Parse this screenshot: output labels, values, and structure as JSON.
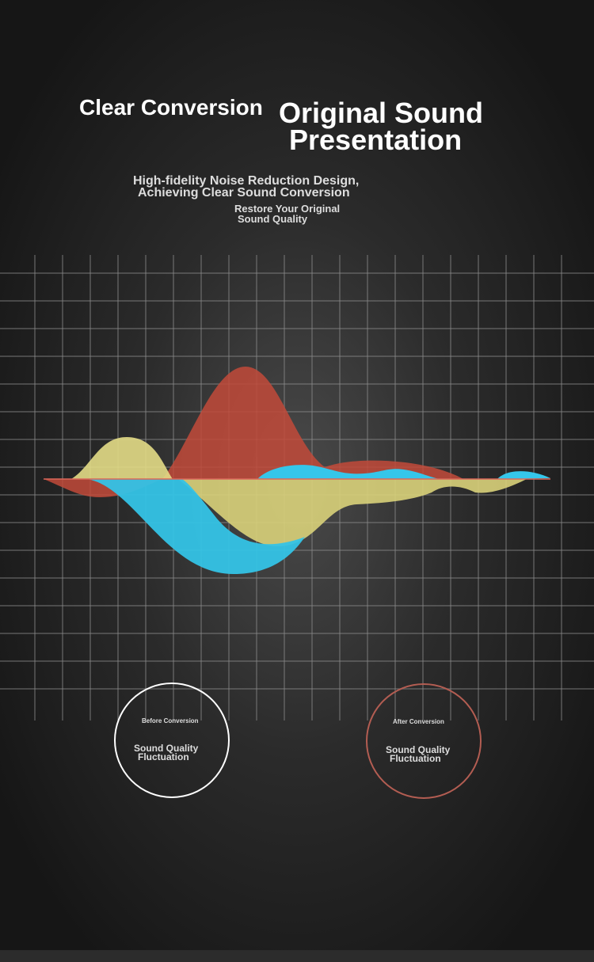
{
  "header": {
    "title_left": "Clear Conversion",
    "title_right": [
      "Original Sound",
      "Presentation"
    ]
  },
  "subtitle": [
    "High-fidelity Noise Reduction Design,",
    "Achieving Clear Sound Conversion"
  ],
  "tagline": [
    "Restore Your Original",
    "Sound Quality"
  ],
  "badges": [
    {
      "caption": "Before Conversion",
      "label": [
        "Sound Quality",
        "Fluctuation"
      ]
    },
    {
      "caption": "After Conversion",
      "label": [
        "Sound Quality",
        "Fluctuation"
      ]
    }
  ]
}
